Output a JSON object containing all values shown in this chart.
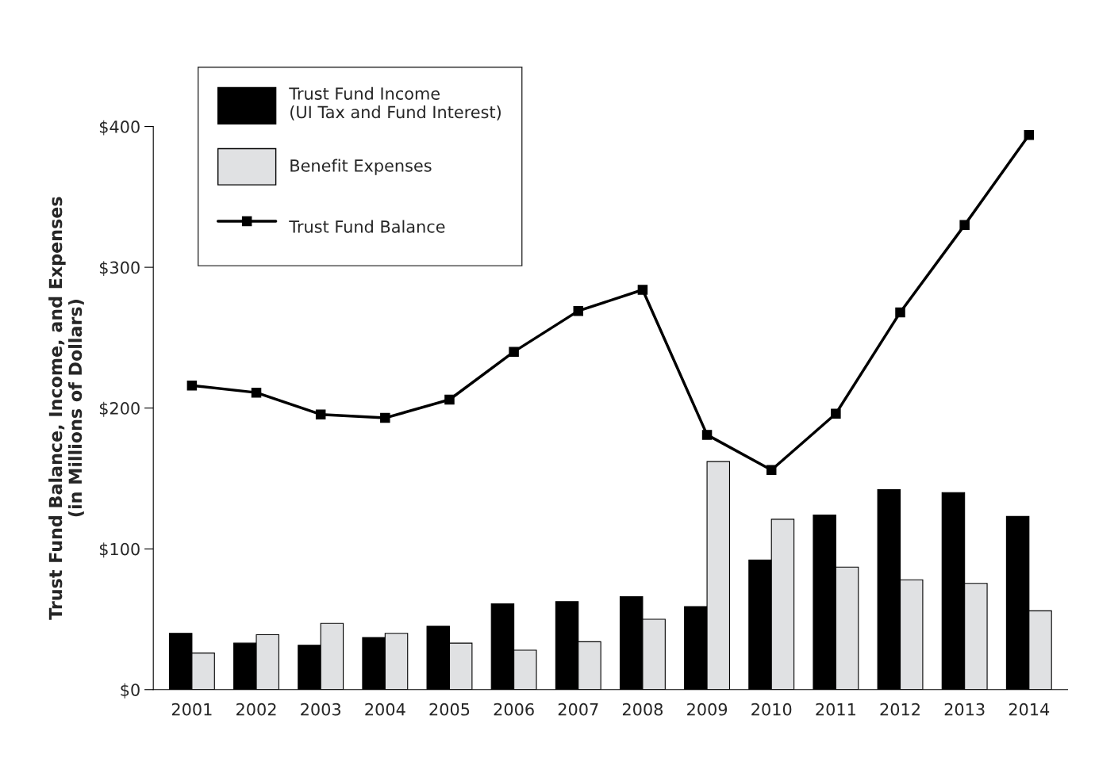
{
  "chart_data": {
    "type": "bar",
    "ylabel": "Trust Fund Balance, Income, and Expenses\n(in Millions of Dollars)",
    "categories": [
      "2001",
      "2002",
      "2003",
      "2004",
      "2005",
      "2006",
      "2007",
      "2008",
      "2009",
      "2010",
      "2011",
      "2012",
      "2013",
      "2014"
    ],
    "series": [
      {
        "name": "Trust Fund Income\n(UI Tax and Fund Interest)",
        "color": "#000000",
        "values": [
          40,
          33,
          31.5,
          37,
          45,
          61,
          62.5,
          66,
          59,
          92,
          124,
          142,
          140,
          123
        ]
      },
      {
        "name": "Benefit Expenses",
        "color": "#e0e1e3",
        "values": [
          26,
          39,
          47,
          40,
          33,
          28,
          34,
          50,
          162,
          121,
          87,
          78,
          75.5,
          56
        ]
      },
      {
        "name": "Trust Fund Balance",
        "type": "line",
        "color": "#000000",
        "marker": "square",
        "line_style": "solid",
        "values": [
          216,
          211,
          195.5,
          193,
          206,
          240,
          269,
          284,
          181,
          156,
          196,
          268,
          330,
          394
        ]
      }
    ],
    "ylim": [
      0,
      400
    ],
    "yticks": [
      {
        "value": 0,
        "label": "$0"
      },
      {
        "value": 100,
        "label": "$100"
      },
      {
        "value": 200,
        "label": "$200"
      },
      {
        "value": 300,
        "label": "$300"
      },
      {
        "value": 400,
        "label": "$400"
      }
    ],
    "grid": false,
    "legend": "top left"
  }
}
